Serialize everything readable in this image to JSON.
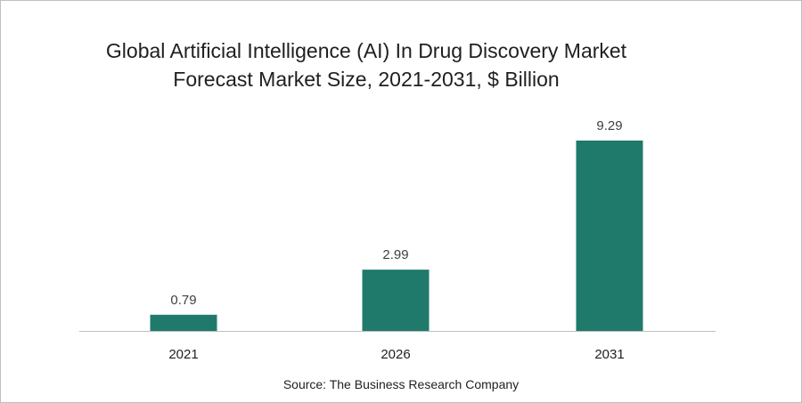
{
  "chart_data": {
    "type": "bar",
    "title_lines": [
      "Global Artificial Intelligence (AI) In Drug Discovery Market",
      "Forecast Market Size, 2021-2031, $ Billion"
    ],
    "categories": [
      "2021",
      "2026",
      "2031"
    ],
    "values": [
      0.79,
      2.99,
      9.29
    ],
    "data_labels": [
      "0.79",
      "2.99",
      "9.29"
    ],
    "xlabel": "",
    "ylabel": "",
    "ylim": [
      0,
      10
    ],
    "grid": false,
    "bar_color": "#1f7a6b",
    "axis_color": "#bfbfbf",
    "label_color": "#404040"
  },
  "source": "Source: The Business Research Company"
}
